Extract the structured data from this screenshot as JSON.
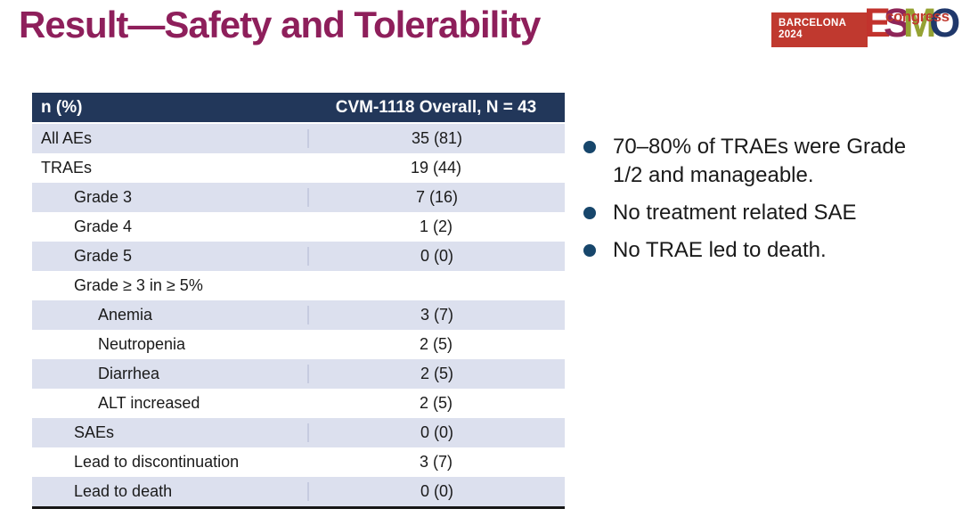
{
  "title": "Result—Safety and Tolerability",
  "logo": {
    "city": "BARCELONA",
    "year": "2024",
    "letters": [
      {
        "char": "E",
        "color": "#C2332D"
      },
      {
        "char": "S",
        "color": "#8E2558"
      },
      {
        "char": "M",
        "color": "#95A233"
      },
      {
        "char": "O",
        "color": "#20386B"
      }
    ],
    "congress": "congress"
  },
  "table": {
    "header": {
      "col1": "n (%)",
      "col2": "CVM-1118 Overall, N = 43"
    },
    "rows": [
      {
        "label": "All AEs",
        "value": "35 (81)",
        "indent": 0
      },
      {
        "label": "TRAEs",
        "value": "19 (44)",
        "indent": 0
      },
      {
        "label": "Grade 3",
        "value": "7 (16)",
        "indent": 1
      },
      {
        "label": "Grade 4",
        "value": "1 (2)",
        "indent": 1
      },
      {
        "label": "Grade 5",
        "value": "0 (0)",
        "indent": 1
      },
      {
        "label": "Grade ≥ 3 in ≥ 5%",
        "value": "",
        "indent": 1
      },
      {
        "label": "Anemia",
        "value": "3 (7)",
        "indent": 2
      },
      {
        "label": "Neutropenia",
        "value": "2 (5)",
        "indent": 2
      },
      {
        "label": "Diarrhea",
        "value": "2 (5)",
        "indent": 2
      },
      {
        "label": "ALT increased",
        "value": "2 (5)",
        "indent": 2
      },
      {
        "label": "SAEs",
        "value": "0 (0)",
        "indent": 1
      },
      {
        "label": "Lead to discontinuation",
        "value": "3 (7)",
        "indent": 1
      },
      {
        "label": "Lead to death",
        "value": "0 (0)",
        "indent": 1
      }
    ]
  },
  "bullets": [
    "70–80% of TRAEs were Grade 1/2 and manageable.",
    "No treatment related SAE",
    "No TRAE led to death."
  ],
  "colors": {
    "title": "#8E1F5B",
    "header_bg": "#22375A",
    "header_text": "#FFFFFF",
    "row_shade": "#DCE0EE",
    "row_divider": "#C6CBE0",
    "table_bottom_border": "#161616",
    "bullet_dot": "#17466B",
    "body_text": "#1A1A1A",
    "logo_red": "#C0392F"
  }
}
